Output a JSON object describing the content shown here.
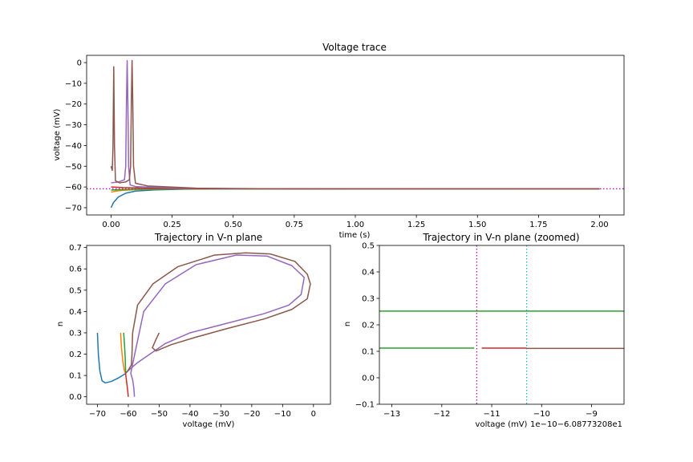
{
  "chart_data": [
    {
      "id": "voltage_trace",
      "type": "line",
      "title": "Voltage trace",
      "xlabel": "time (s)",
      "ylabel": "voltage (mV)",
      "xlim": [
        -0.1,
        2.1
      ],
      "ylim": [
        -73.5,
        3.5
      ],
      "xticks": [
        0.0,
        0.25,
        0.5,
        0.75,
        1.0,
        1.25,
        1.5,
        1.75,
        2.0
      ],
      "xtick_labels": [
        "0.00",
        "0.25",
        "0.50",
        "0.75",
        "1.00",
        "1.25",
        "1.50",
        "1.75",
        "2.00"
      ],
      "yticks": [
        0,
        -10,
        -20,
        -30,
        -40,
        -50,
        -60,
        -70
      ],
      "ytick_labels": [
        "0",
        "−10",
        "−20",
        "−30",
        "−40",
        "−50",
        "−60",
        "−70"
      ],
      "grid": false,
      "hline": {
        "y": -60.88,
        "color": "#bf00bf",
        "style": "dotted"
      },
      "series": [
        {
          "color": "#1f77b4",
          "points": [
            [
              0,
              -70
            ],
            [
              0.01,
              -67.5
            ],
            [
              0.03,
              -64.8
            ],
            [
              0.06,
              -63
            ],
            [
              0.1,
              -62
            ],
            [
              0.18,
              -61.4
            ],
            [
              0.3,
              -61.05
            ],
            [
              0.5,
              -60.9
            ],
            [
              2.0,
              -60.88
            ]
          ]
        },
        {
          "color": "#ff7f0e",
          "points": [
            [
              0,
              -62.5
            ],
            [
              0.02,
              -62
            ],
            [
              0.05,
              -61.6
            ],
            [
              0.12,
              -61.2
            ],
            [
              0.3,
              -60.95
            ],
            [
              2.0,
              -60.88
            ]
          ]
        },
        {
          "color": "#2ca02c",
          "points": [
            [
              0,
              -61.5
            ],
            [
              0.03,
              -61.3
            ],
            [
              0.1,
              -61.1
            ],
            [
              0.3,
              -60.92
            ],
            [
              2.0,
              -60.88
            ]
          ]
        },
        {
          "color": "#d62728",
          "points": [
            [
              0,
              -60
            ],
            [
              0.05,
              -60.3
            ],
            [
              0.15,
              -60.6
            ],
            [
              0.4,
              -60.85
            ],
            [
              2.0,
              -60.88
            ]
          ]
        },
        {
          "color": "#9467bd",
          "points": [
            [
              0,
              -58
            ],
            [
              0.03,
              -57.6
            ],
            [
              0.055,
              -56.5
            ],
            [
              0.06,
              -50
            ],
            [
              0.063,
              -20
            ],
            [
              0.066,
              1
            ],
            [
              0.069,
              -20
            ],
            [
              0.072,
              -50
            ],
            [
              0.078,
              -59
            ],
            [
              0.1,
              -59.8
            ],
            [
              0.25,
              -60.5
            ],
            [
              0.5,
              -60.85
            ],
            [
              2.0,
              -60.88
            ]
          ]
        },
        {
          "color": "#8c564b",
          "points": [
            [
              0,
              -50
            ],
            [
              0.005,
              -52
            ],
            [
              0.008,
              -40
            ],
            [
              0.011,
              -2
            ],
            [
              0.014,
              -40
            ],
            [
              0.018,
              -57
            ],
            [
              0.035,
              -58
            ],
            [
              0.06,
              -57.6
            ],
            [
              0.075,
              -56.5
            ],
            [
              0.08,
              -50
            ],
            [
              0.083,
              -20
            ],
            [
              0.086,
              1
            ],
            [
              0.089,
              -20
            ],
            [
              0.092,
              -50
            ],
            [
              0.1,
              -58.2
            ],
            [
              0.15,
              -59.5
            ],
            [
              0.35,
              -60.6
            ],
            [
              0.6,
              -60.85
            ],
            [
              2.0,
              -60.88
            ]
          ]
        }
      ]
    },
    {
      "id": "trajectory",
      "type": "line",
      "title": "Trajectory in V-n plane",
      "xlabel": "voltage (mV)",
      "ylabel": "n",
      "xlim": [
        -73.5,
        5.5
      ],
      "ylim": [
        -0.035,
        0.71
      ],
      "xticks": [
        -70,
        -60,
        -50,
        -40,
        -30,
        -20,
        -10,
        0
      ],
      "xtick_labels": [
        "−70",
        "−60",
        "−50",
        "−40",
        "−30",
        "−20",
        "−10",
        "0"
      ],
      "yticks": [
        0.0,
        0.1,
        0.2,
        0.3,
        0.4,
        0.5,
        0.6,
        0.7
      ],
      "ytick_labels": [
        "0.0",
        "0.1",
        "0.2",
        "0.3",
        "0.4",
        "0.5",
        "0.6",
        "0.7"
      ],
      "grid": false,
      "series": [
        {
          "color": "#1f77b4",
          "points": [
            [
              -70,
              0.3
            ],
            [
              -69.7,
              0.2
            ],
            [
              -69.2,
              0.12
            ],
            [
              -68.5,
              0.075
            ],
            [
              -67.5,
              0.065
            ],
            [
              -65.5,
              0.072
            ],
            [
              -63,
              0.09
            ],
            [
              -61,
              0.108
            ],
            [
              -60.88,
              0.11
            ]
          ]
        },
        {
          "color": "#ff7f0e",
          "points": [
            [
              -62.5,
              0.3
            ],
            [
              -62.2,
              0.23
            ],
            [
              -61.8,
              0.17
            ],
            [
              -61.3,
              0.125
            ],
            [
              -60.9,
              0.11
            ]
          ]
        },
        {
          "color": "#2ca02c",
          "points": [
            [
              -61.5,
              0.3
            ],
            [
              -61.2,
              0.24
            ],
            [
              -61,
              0.18
            ],
            [
              -60.9,
              0.13
            ],
            [
              -60.88,
              0.11
            ]
          ]
        },
        {
          "color": "#d62728",
          "points": [
            [
              -60,
              0.0
            ],
            [
              -60.2,
              0.03
            ],
            [
              -60.5,
              0.065
            ],
            [
              -60.75,
              0.095
            ],
            [
              -60.88,
              0.11
            ]
          ]
        },
        {
          "color": "#9467bd",
          "points": [
            [
              -58,
              0.0
            ],
            [
              -58.2,
              0.04
            ],
            [
              -58.6,
              0.08
            ],
            [
              -59.2,
              0.11
            ],
            [
              -58.5,
              0.16
            ],
            [
              -55,
              0.4
            ],
            [
              -48,
              0.53
            ],
            [
              -38,
              0.62
            ],
            [
              -25,
              0.665
            ],
            [
              -15,
              0.66
            ],
            [
              -7,
              0.615
            ],
            [
              -3,
              0.56
            ],
            [
              -4,
              0.48
            ],
            [
              -8,
              0.43
            ],
            [
              -16,
              0.39
            ],
            [
              -28,
              0.345
            ],
            [
              -40,
              0.3
            ],
            [
              -48,
              0.25
            ],
            [
              -53,
              0.2
            ],
            [
              -57,
              0.16
            ],
            [
              -59.5,
              0.13
            ],
            [
              -60.88,
              0.11
            ]
          ]
        },
        {
          "color": "#8c564b",
          "points": [
            [
              -50,
              0.3
            ],
            [
              -51,
              0.27
            ],
            [
              -52.2,
              0.23
            ],
            [
              -51,
              0.215
            ],
            [
              -46,
              0.245
            ],
            [
              -38,
              0.28
            ],
            [
              -28,
              0.32
            ],
            [
              -16,
              0.365
            ],
            [
              -7,
              0.41
            ],
            [
              -2,
              0.46
            ],
            [
              -1,
              0.53
            ],
            [
              -2,
              0.575
            ],
            [
              -6,
              0.635
            ],
            [
              -14,
              0.67
            ],
            [
              -22,
              0.675
            ],
            [
              -32,
              0.665
            ],
            [
              -44,
              0.61
            ],
            [
              -52,
              0.53
            ],
            [
              -57,
              0.43
            ],
            [
              -58.6,
              0.3
            ],
            [
              -58.8,
              0.2
            ],
            [
              -59,
              0.15
            ],
            [
              -60,
              0.125
            ],
            [
              -60.88,
              0.11
            ]
          ]
        }
      ]
    },
    {
      "id": "trajectory_zoomed",
      "type": "line",
      "title": "Trajectory in V-n plane (zoomed)",
      "xlabel": "voltage (mV)",
      "ylabel": "n",
      "offset_text": "1e−10−6.08773208e1",
      "xlim": [
        -13.25,
        -8.35
      ],
      "ylim": [
        -0.1,
        0.5
      ],
      "xticks": [
        -13,
        -12,
        -11,
        -10,
        -9
      ],
      "xtick_labels": [
        "−13",
        "−12",
        "−11",
        "−10",
        "−9"
      ],
      "yticks": [
        -0.1,
        0.0,
        0.1,
        0.2,
        0.3,
        0.4,
        0.5
      ],
      "ytick_labels": [
        "−0.1",
        "0.0",
        "0.1",
        "0.2",
        "0.3",
        "0.4",
        "0.5"
      ],
      "grid": false,
      "vlines": [
        {
          "x": -11.3,
          "color": "#bf00bf",
          "style": "dotted"
        },
        {
          "x": -10.3,
          "color": "#17becf",
          "style": "dotted"
        }
      ],
      "series": [
        {
          "color": "#2ca02c",
          "points": [
            [
              -13.25,
              0.252
            ],
            [
              -8.35,
              0.252
            ]
          ]
        },
        {
          "color": "#2ca02c",
          "points": [
            [
              -13.25,
              0.112
            ],
            [
              -11.35,
              0.112
            ]
          ]
        },
        {
          "color": "#d62728",
          "points": [
            [
              -11.2,
              0.112
            ],
            [
              -10.3,
              0.112
            ]
          ]
        },
        {
          "color": "#8c564b",
          "points": [
            [
              -10.3,
              0.111
            ],
            [
              -8.35,
              0.111
            ]
          ]
        }
      ]
    }
  ]
}
